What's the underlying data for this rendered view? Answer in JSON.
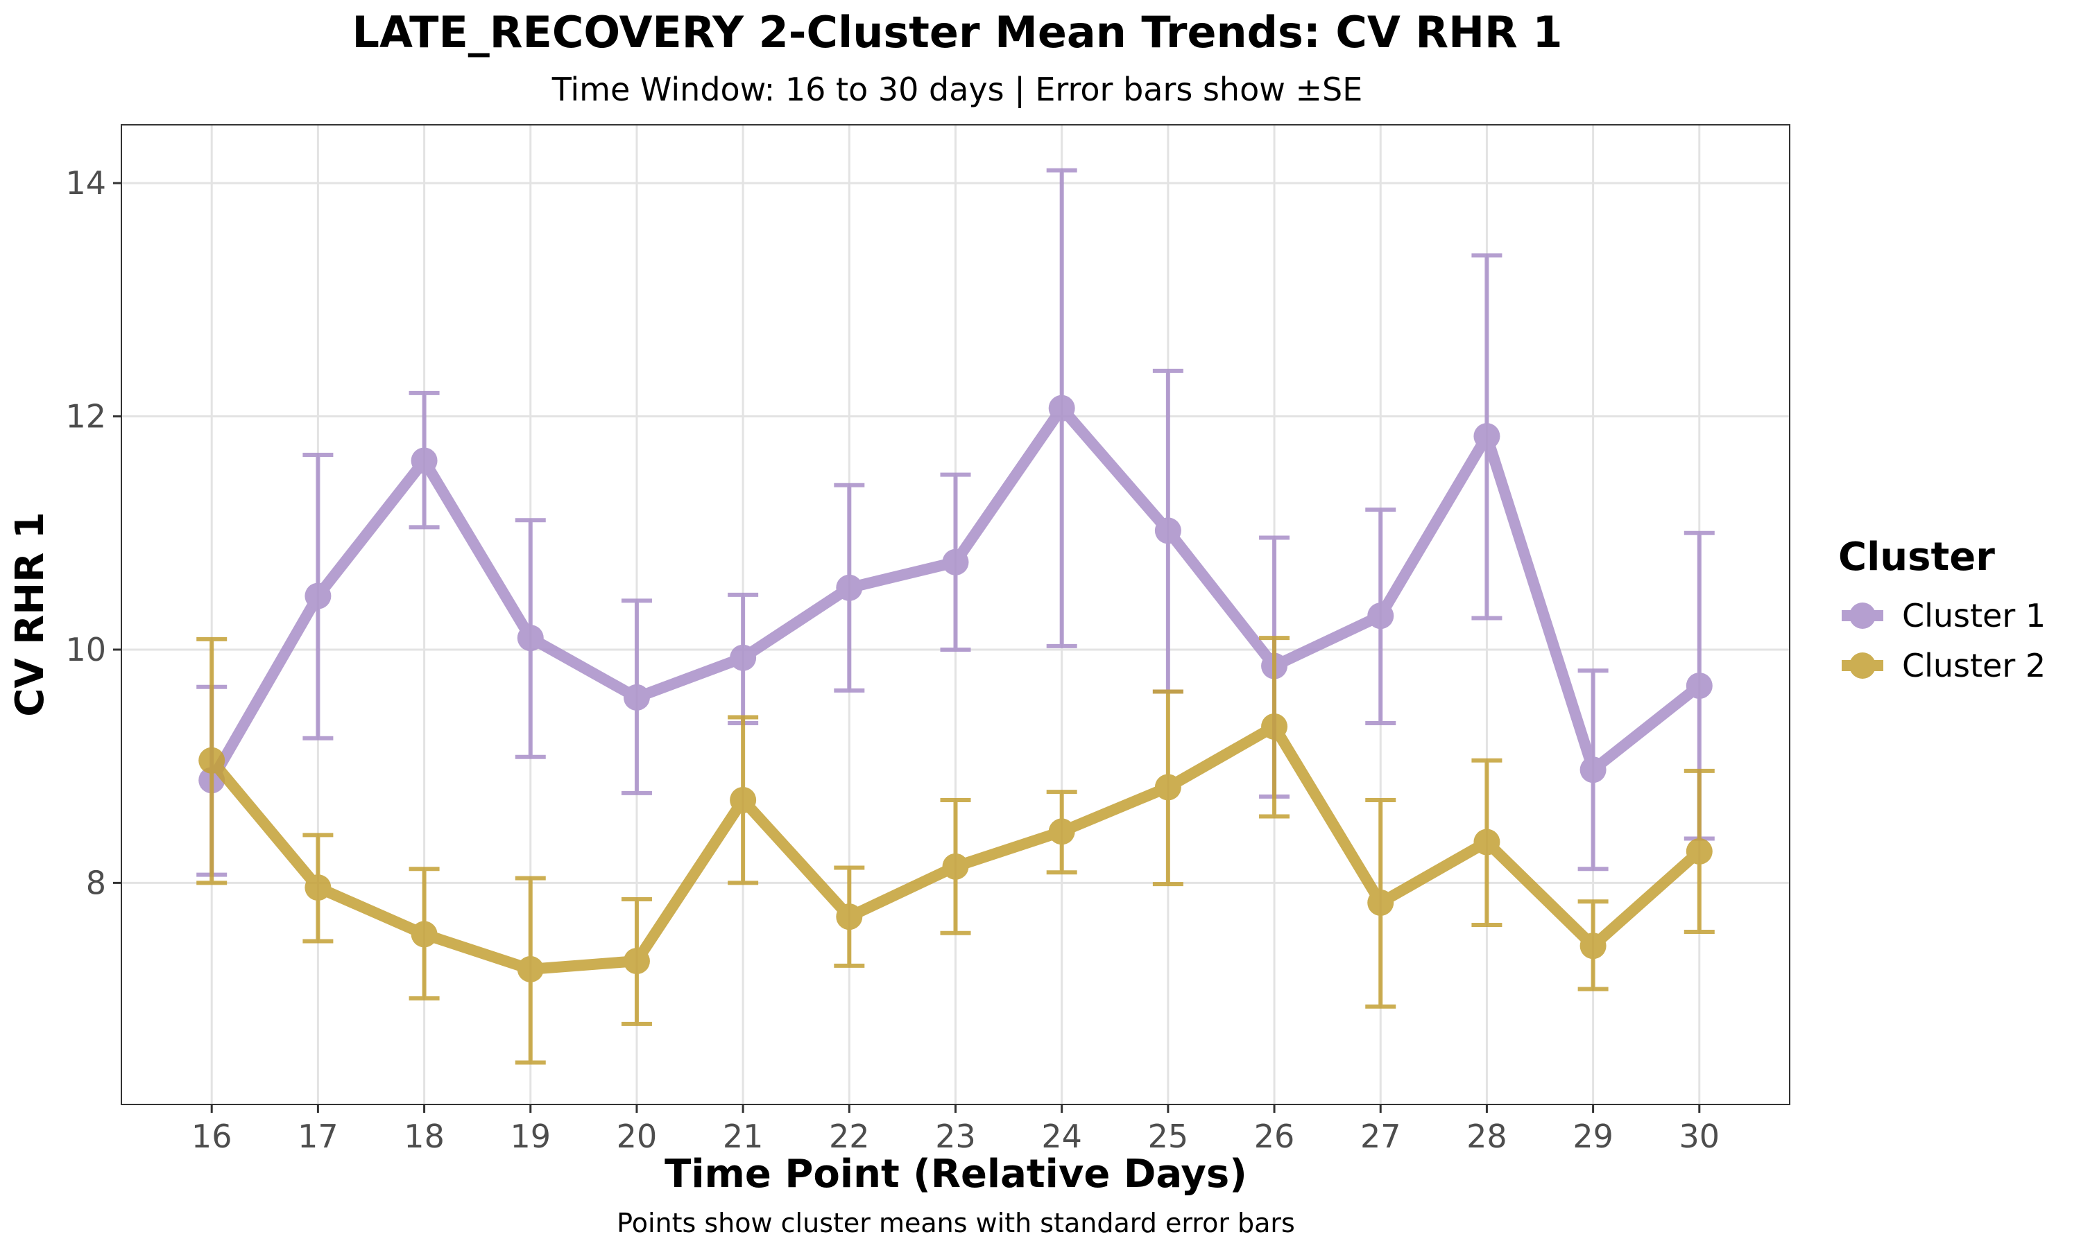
{
  "colors": {
    "cluster1": "#a98fc8",
    "cluster2": "#c4a035",
    "grid": "#e3e3e3",
    "panel_border": "#333333",
    "tick_text": "#4d4d4d"
  },
  "chart_data": {
    "type": "line",
    "title": "LATE_RECOVERY 2-Cluster Mean Trends: CV RHR 1",
    "subtitle": "Time Window: 16 to 30 days | Error bars show ±SE",
    "xlabel": "Time Point (Relative Days)",
    "ylabel": "CV RHR 1",
    "caption": "Points show cluster means with standard error bars",
    "x": [
      16,
      17,
      18,
      19,
      20,
      21,
      22,
      23,
      24,
      25,
      26,
      27,
      28,
      29,
      30
    ],
    "x_tick_labels": [
      "16",
      "17",
      "18",
      "19",
      "20",
      "21",
      "22",
      "23",
      "24",
      "25",
      "26",
      "27",
      "28",
      "29",
      "30"
    ],
    "xlim": [
      15.15,
      30.85
    ],
    "ylim": [
      6.1,
      14.5
    ],
    "y_ticks": [
      8,
      10,
      12,
      14
    ],
    "y_tick_labels": [
      "8",
      "10",
      "12",
      "14"
    ],
    "grid": true,
    "error_bars": "±SE",
    "legend": {
      "title": "Cluster",
      "placement": "right",
      "entries": [
        "Cluster 1",
        "Cluster 2"
      ]
    },
    "series": [
      {
        "name": "Cluster 1",
        "color_key": "cluster1",
        "values": [
          8.88,
          10.46,
          11.62,
          10.1,
          9.59,
          9.93,
          10.53,
          10.75,
          12.07,
          11.02,
          9.86,
          10.29,
          11.83,
          8.97,
          9.69
        ],
        "lower": [
          8.07,
          9.24,
          11.05,
          9.08,
          8.77,
          9.37,
          9.65,
          10.0,
          10.03,
          9.64,
          8.74,
          9.37,
          10.27,
          8.12,
          8.38
        ],
        "upper": [
          9.68,
          11.67,
          12.2,
          11.11,
          10.42,
          10.47,
          11.41,
          11.5,
          14.11,
          12.39,
          10.96,
          11.2,
          13.38,
          9.82,
          11.0
        ]
      },
      {
        "name": "Cluster 2",
        "color_key": "cluster2",
        "values": [
          9.05,
          7.96,
          7.56,
          7.26,
          7.33,
          8.71,
          7.71,
          8.14,
          8.44,
          8.82,
          9.34,
          7.83,
          8.35,
          7.46,
          8.27
        ],
        "lower": [
          8.0,
          7.5,
          7.01,
          6.46,
          6.79,
          8.0,
          7.29,
          7.57,
          8.09,
          7.99,
          8.57,
          6.94,
          7.64,
          7.09,
          7.58
        ],
        "upper": [
          10.09,
          8.41,
          8.12,
          8.04,
          7.86,
          9.42,
          8.13,
          8.71,
          8.78,
          9.64,
          10.1,
          8.71,
          9.05,
          7.84,
          8.96
        ]
      }
    ]
  }
}
